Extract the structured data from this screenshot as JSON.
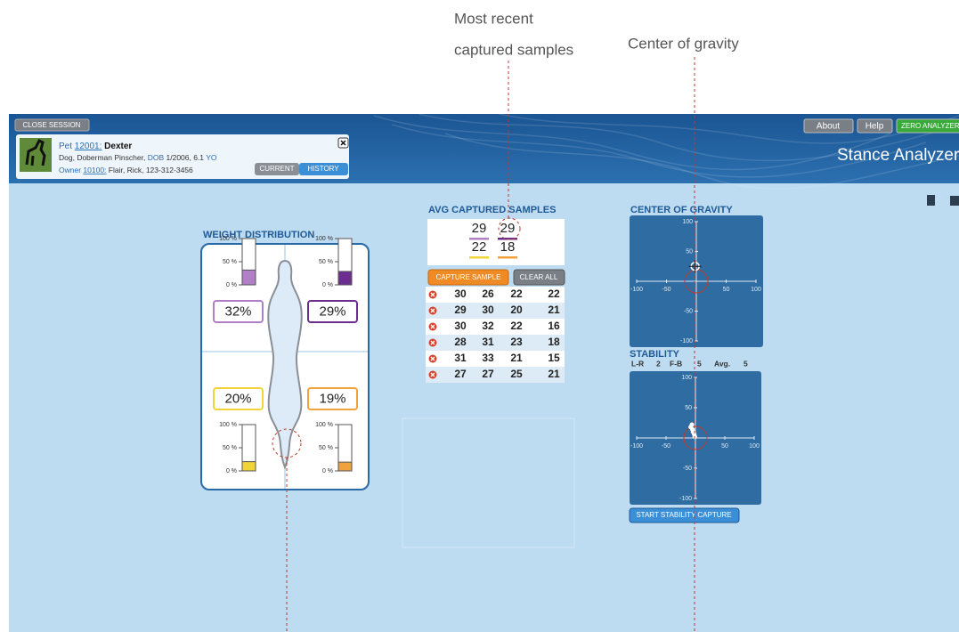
{
  "annotations": {
    "recent_samples": [
      "Most recent",
      "captured samples"
    ],
    "center_of_gravity": "Center of gravity"
  },
  "header": {
    "close_session": "CLOSE SESSION",
    "pet_label": "Pet",
    "pet_id": "12001:",
    "pet_name": "Dexter",
    "breed": "Dog, Doberman Pinscher,",
    "dob_label": "DOB",
    "dob": "1/2006, 6.1",
    "age_unit": "YO",
    "owner_label": "Owner",
    "owner_id": "10100:",
    "owner": "Flair, Rick, 123-312-3456",
    "tabs": [
      "CURRENT",
      "HISTORY"
    ],
    "buttons": [
      "About",
      "Help",
      "ZERO ANALYZER"
    ],
    "app_title": "Stance Analyzer"
  },
  "weight_distribution": {
    "title": "WEIGHT DISTRIBUTION",
    "gauge_ticks": [
      {
        "value": 100,
        "label": "100 %"
      },
      {
        "value": 50,
        "label": "50 %"
      },
      {
        "value": 0,
        "label": "0 %"
      }
    ],
    "quadrants": [
      {
        "value": 32,
        "label": "32%",
        "color": "#b07fc6"
      },
      {
        "value": 29,
        "label": "29%",
        "color": "#6b2d8f"
      },
      {
        "value": 20,
        "label": "20%",
        "color": "#f0d43a"
      },
      {
        "value": 19,
        "label": "19%",
        "color": "#f0a33c"
      }
    ]
  },
  "avg_samples": {
    "title": "AVG CAPTURED SAMPLES",
    "values": [
      29,
      29,
      22,
      18
    ],
    "buttons": [
      "CAPTURE SAMPLE",
      "CLEAR ALL"
    ],
    "rows": [
      [
        30,
        26,
        22,
        22
      ],
      [
        29,
        30,
        20,
        21
      ],
      [
        30,
        32,
        22,
        16
      ],
      [
        28,
        31,
        23,
        18
      ],
      [
        31,
        33,
        21,
        15
      ],
      [
        27,
        27,
        25,
        21
      ]
    ]
  },
  "center_of_gravity": {
    "title": "CENTER OF GRAVITY",
    "xlim": [
      -100,
      100
    ],
    "ylim": [
      -100,
      100
    ],
    "xticks": [
      -100,
      -50,
      50,
      100
    ],
    "yticks": [
      100,
      50,
      -50,
      -100
    ],
    "point": {
      "x": -2,
      "y": 25
    }
  },
  "stability": {
    "title": "STABILITY",
    "stats": [
      {
        "label": "L-R",
        "value": 2
      },
      {
        "label": "F-B",
        "value": 5
      },
      {
        "label": "Avg.",
        "value": 5
      }
    ],
    "xlim": [
      -100,
      100
    ],
    "ylim": [
      -100,
      100
    ],
    "xticks": [
      -100,
      -50,
      50,
      100
    ],
    "yticks": [
      100,
      50,
      -50,
      -100
    ],
    "points": {
      "x": [
        -8,
        -6,
        -5,
        -4,
        -2,
        -1
      ],
      "y": [
        18,
        22,
        14,
        10,
        6,
        2
      ]
    },
    "button": "START STABILITY CAPTURE"
  }
}
